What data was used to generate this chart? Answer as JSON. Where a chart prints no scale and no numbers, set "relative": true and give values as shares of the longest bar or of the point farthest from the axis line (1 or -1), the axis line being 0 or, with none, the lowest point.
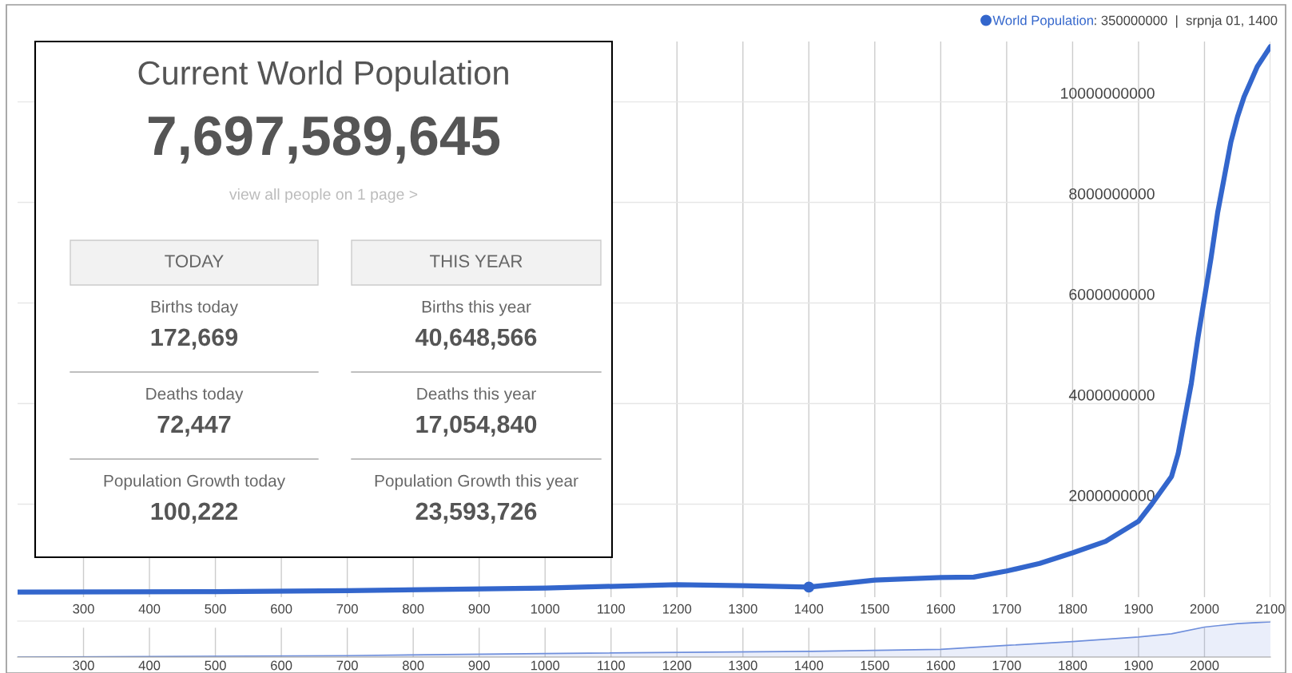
{
  "chart_data": [
    {
      "type": "line",
      "x": [
        200,
        500,
        700,
        1000,
        1200,
        1300,
        1400,
        1500,
        1600,
        1650,
        1700,
        1750,
        1800,
        1850,
        1900,
        1920,
        1950,
        1960,
        1970,
        1980,
        1990,
        2000,
        2010,
        2020,
        2030,
        2040,
        2050,
        2060,
        2070,
        2080,
        2090,
        2100
      ],
      "series": [
        {
          "name": "World Population",
          "color": "#3366cc",
          "values": [
            250000000,
            260000000,
            280000000,
            330000000,
            400000000,
            380000000,
            350000000,
            490000000,
            540000000,
            550000000,
            670000000,
            820000000,
            1030000000,
            1260000000,
            1660000000,
            2000000000,
            2550000000,
            3000000000,
            3700000000,
            4400000000,
            5300000000,
            6100000000,
            6900000000,
            7800000000,
            8500000000,
            9200000000,
            9700000000,
            10100000000,
            10400000000,
            10700000000,
            10900000000,
            11100000000
          ]
        },
        {
          "type": "scatter",
          "x": [
            1400
          ],
          "color": "#3366cc",
          "marker": "circle",
          "values": [
            350000000
          ]
        }
      ],
      "xlim": [
        200,
        2100
      ],
      "xticks": [
        300,
        400,
        500,
        600,
        700,
        800,
        900,
        1000,
        1100,
        1200,
        1300,
        1400,
        1500,
        1600,
        1700,
        1800,
        1900,
        2000,
        2100
      ],
      "ylim": [
        150000000,
        11200000000
      ],
      "yticks": [
        2000000000,
        4000000000,
        6000000000,
        8000000000,
        10000000000
      ],
      "grid": true,
      "legend": "top right",
      "marker": "none",
      "line_style": "solid",
      "annotations": [
        ": 350000000  |  srpnja 01, 1400"
      ]
    },
    {
      "type": "area",
      "relative": true,
      "x": [
        200,
        700,
        1000,
        1400,
        1600,
        1700,
        1800,
        1900,
        1950,
        2000,
        2050,
        2100
      ],
      "series": [
        {
          "color": "#6f8fdc",
          "values": [
            0,
            0.04,
            0.1,
            0.16,
            0.22,
            0.33,
            0.44,
            0.57,
            0.66,
            0.85,
            0.95,
            1.0
          ]
        }
      ],
      "xlim": [
        200,
        2100
      ],
      "xticks": [
        300,
        400,
        500,
        600,
        700,
        800,
        900,
        1000,
        1100,
        1200,
        1300,
        1400,
        1500,
        1600,
        1700,
        1800,
        1900,
        2000
      ],
      "grid": "x"
    },
    {
      "type": "other",
      "title": "Current World Population",
      "subtitle": "7,697,589,645",
      "annotations": [
        "view all people on 1 page >",
        "TODAY",
        "THIS YEAR",
        "Births today",
        "172,669",
        "Births this year",
        "40,648,566",
        "Deaths today",
        "72,447",
        "Deaths this year",
        "17,054,840",
        "Population Growth today",
        "100,222",
        "Population Growth this year",
        "23,593,726"
      ]
    }
  ]
}
